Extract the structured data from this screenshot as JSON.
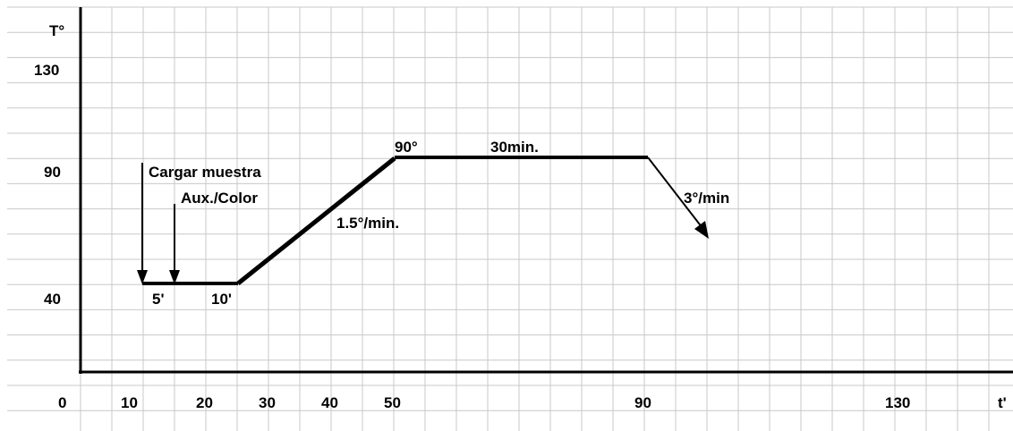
{
  "y_axis": {
    "unit_label": "T°",
    "tick_labels": [
      "130",
      "90",
      "40"
    ]
  },
  "x_axis": {
    "unit_label": "t'",
    "tick_labels": [
      "0",
      "10",
      "20",
      "30",
      "40",
      "50",
      "90",
      "130"
    ]
  },
  "annotations": {
    "load_sample": "Cargar muestra",
    "aux_color": "Aux./Color",
    "five_min": "5'",
    "ten_min": "10'",
    "ramp_rate": "1.5°/min.",
    "peak_temp": "90°",
    "hold_time": "30min.",
    "cool_rate": "3°/min"
  },
  "profile": {
    "colors": {
      "line": "#000000",
      "grid": "#c8c8c8"
    }
  }
}
